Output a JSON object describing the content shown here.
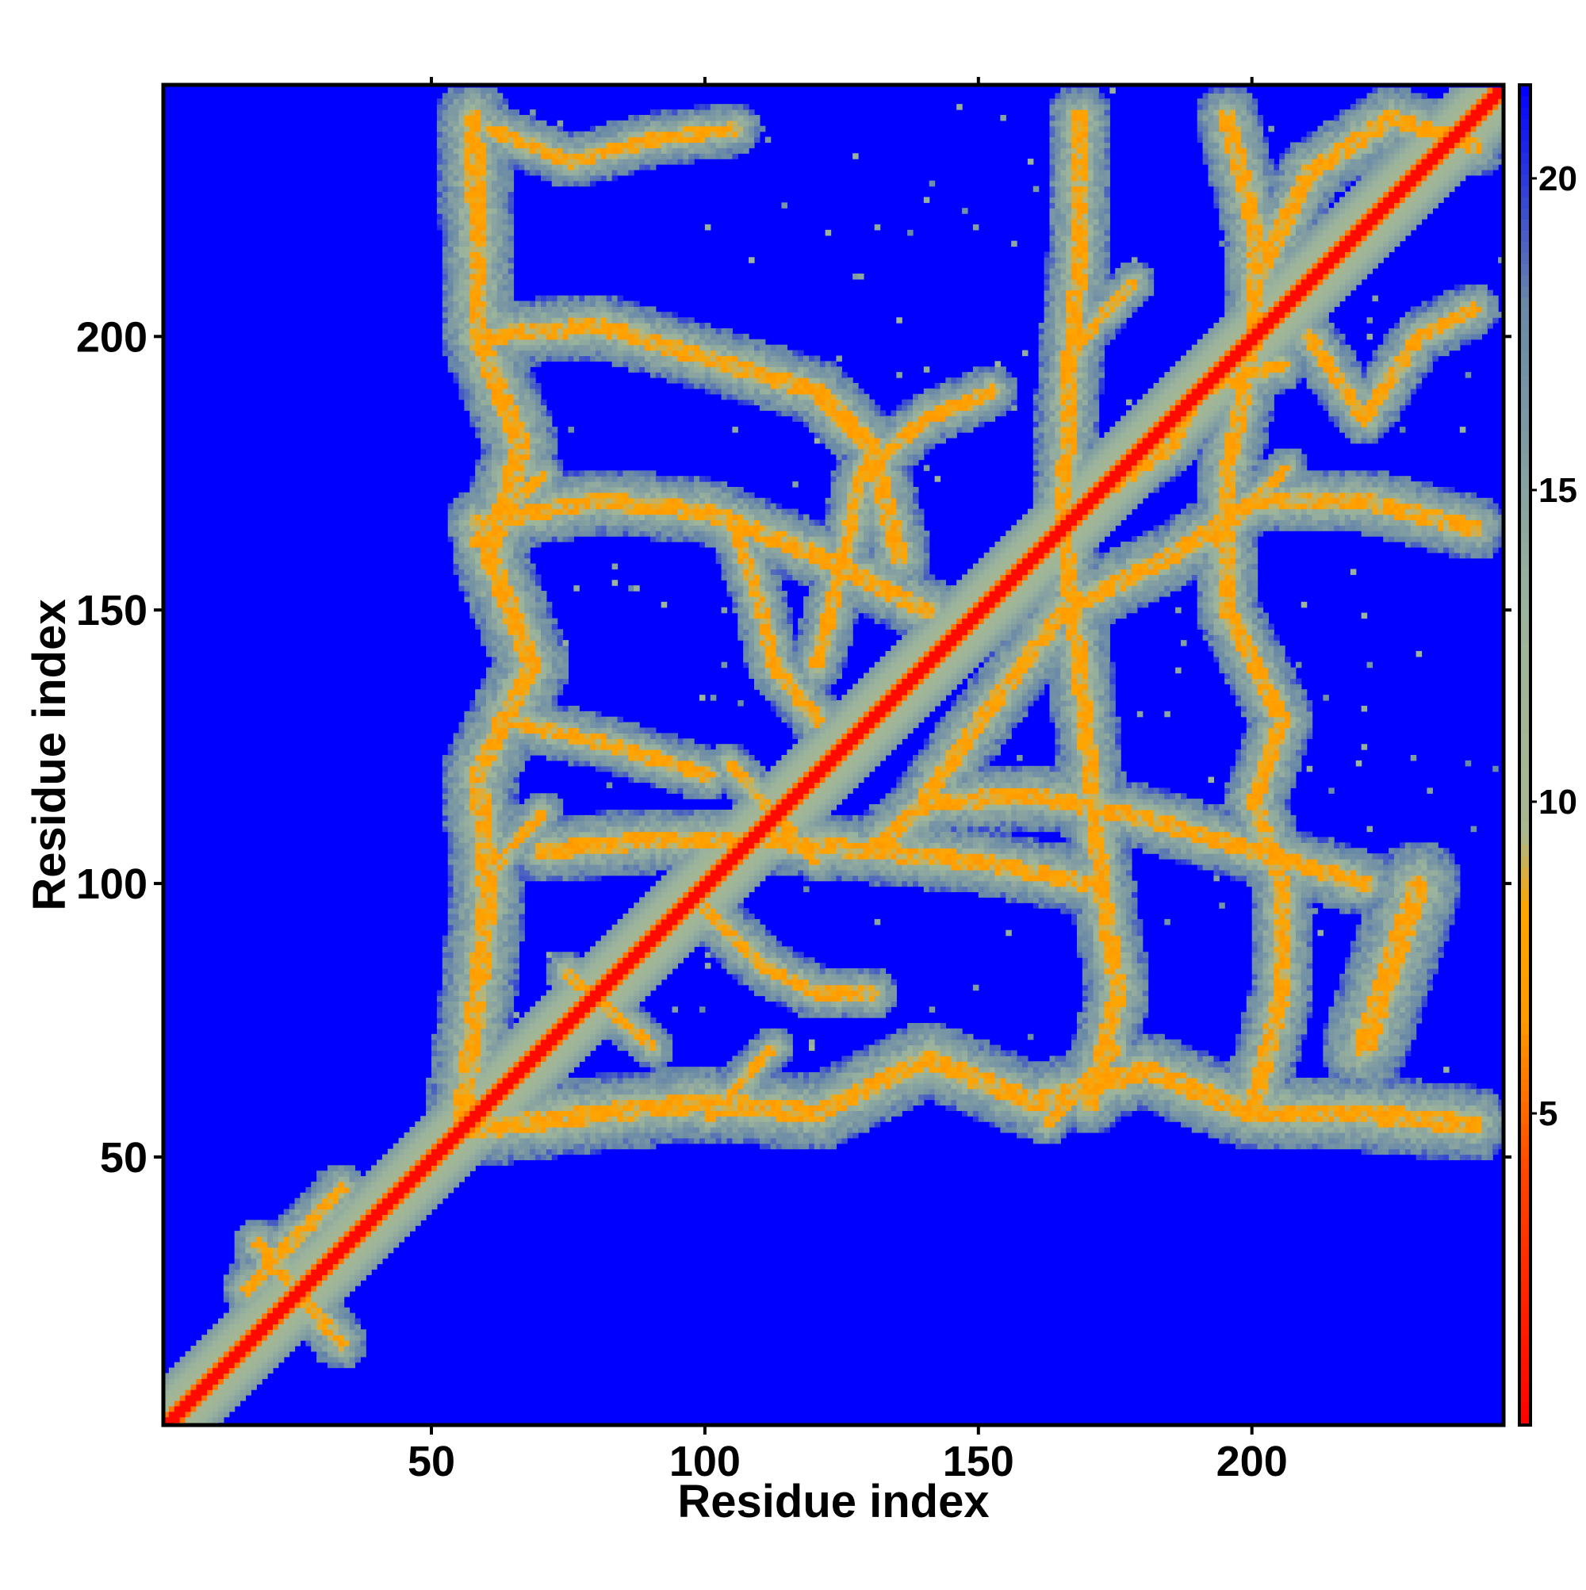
{
  "chart_data": {
    "type": "heatmap",
    "title": "",
    "xlabel": "Residue index",
    "ylabel": "Residue index",
    "n_residues": 245,
    "xlim": [
      1,
      246
    ],
    "ylim": [
      1,
      246
    ],
    "x_ticks": [
      50,
      100,
      150,
      200
    ],
    "y_ticks": [
      50,
      100,
      150,
      200
    ],
    "x_tick_labels": [
      "50",
      "100",
      "150",
      "200"
    ],
    "y_tick_labels": [
      "50",
      "100",
      "150",
      "200"
    ],
    "colorbar": {
      "range": [
        0,
        21.5
      ],
      "ticks": [
        5,
        10,
        15,
        20
      ],
      "tick_labels": [
        "5",
        "10",
        "15",
        "20"
      ],
      "color_stops": [
        {
          "value": 0,
          "color": "#ff0000"
        },
        {
          "value": 4,
          "color": "#ff4500"
        },
        {
          "value": 6.5,
          "color": "#ff9a00"
        },
        {
          "value": 8.3,
          "color": "#ffa500"
        },
        {
          "value": 9.5,
          "color": "#a8b890"
        },
        {
          "value": 13,
          "color": "#9cb49c"
        },
        {
          "value": 18,
          "color": "#6888a8"
        },
        {
          "value": 21.5,
          "color": "#0000ff"
        }
      ]
    },
    "value_meaning": "pairwise distance (values above cutoff shown blue)",
    "colors": {
      "background": "#0000ff",
      "diagonal": "#ff0000",
      "near": "#ff9a00",
      "mid": "#a8b890",
      "far": "#6888a8"
    },
    "contact_bands": [
      {
        "type": "diagonal",
        "from": 1,
        "to": 245,
        "width": 7
      },
      {
        "type": "segment",
        "from": [
          16,
          26
        ],
        "to": [
          33,
          44
        ],
        "width": 5
      },
      {
        "type": "segment",
        "from": [
          33,
          16
        ],
        "to": [
          18,
          34
        ],
        "width": 5
      },
      {
        "type": "segment",
        "from": [
          100,
          57
        ],
        "to": [
          112,
          70
        ],
        "width": 4
      },
      {
        "type": "segment",
        "from": [
          162,
          56
        ],
        "to": [
          175,
          70
        ],
        "width": 4
      },
      {
        "type": "segment",
        "from": [
          58,
          100
        ],
        "to": [
          70,
          113
        ],
        "width": 4
      },
      {
        "type": "segment",
        "from": [
          57,
          162
        ],
        "to": [
          70,
          175
        ],
        "width": 4
      },
      {
        "type": "segment",
        "from": [
          165,
          196
        ],
        "to": [
          178,
          210
        ],
        "width": 4
      },
      {
        "type": "segment",
        "from": [
          192,
          162
        ],
        "to": [
          206,
          176
        ],
        "width": 4
      },
      {
        "type": "segment",
        "from": [
          104,
          122
        ],
        "to": [
          120,
          104
        ],
        "width": 4
      },
      {
        "type": "segment",
        "from": [
          74,
          84
        ],
        "to": [
          90,
          70
        ],
        "width": 4
      },
      {
        "type": "polyline",
        "points": [
          [
            56,
            55
          ],
          [
            80,
            58
          ],
          [
            100,
            60
          ],
          [
            120,
            58
          ],
          [
            140,
            68
          ],
          [
            160,
            60
          ],
          [
            180,
            66
          ],
          [
            200,
            58
          ],
          [
            220,
            58
          ],
          [
            240,
            56
          ]
        ],
        "width": 7
      },
      {
        "type": "polyline",
        "points": [
          [
            55,
            56
          ],
          [
            58,
            80
          ],
          [
            60,
            100
          ],
          [
            58,
            120
          ],
          [
            68,
            140
          ],
          [
            60,
            160
          ],
          [
            66,
            180
          ],
          [
            58,
            200
          ],
          [
            58,
            220
          ],
          [
            57,
            240
          ]
        ],
        "width": 7
      },
      {
        "type": "polyline",
        "points": [
          [
            58,
            200
          ],
          [
            80,
            202
          ],
          [
            100,
            196
          ],
          [
            120,
            190
          ],
          [
            130,
            180
          ],
          [
            135,
            160
          ]
        ],
        "width": 6
      },
      {
        "type": "polyline",
        "points": [
          [
            58,
            166
          ],
          [
            80,
            170
          ],
          [
            100,
            168
          ],
          [
            120,
            160
          ],
          [
            140,
            150
          ]
        ],
        "width": 6
      },
      {
        "type": "polyline",
        "points": [
          [
            70,
            106
          ],
          [
            90,
            108
          ],
          [
            110,
            108
          ],
          [
            130,
            106
          ],
          [
            150,
            104
          ],
          [
            170,
            100
          ]
        ],
        "width": 6
      },
      {
        "type": "polyline",
        "points": [
          [
            62,
            130
          ],
          [
            80,
            126
          ],
          [
            100,
            120
          ]
        ],
        "width": 5
      },
      {
        "type": "polyline",
        "points": [
          [
            120,
            140
          ],
          [
            125,
            160
          ],
          [
            128,
            175
          ],
          [
            140,
            185
          ],
          [
            152,
            190
          ]
        ],
        "width": 5
      },
      {
        "type": "polyline",
        "points": [
          [
            130,
            106
          ],
          [
            140,
            115
          ],
          [
            160,
            116
          ],
          [
            180,
            112
          ],
          [
            200,
            106
          ],
          [
            220,
            100
          ]
        ],
        "width": 6
      },
      {
        "type": "polyline",
        "points": [
          [
            140,
            116
          ],
          [
            150,
            130
          ],
          [
            165,
            150
          ],
          [
            185,
            160
          ],
          [
            200,
            170
          ],
          [
            220,
            170
          ],
          [
            240,
            165
          ]
        ],
        "width": 6
      },
      {
        "type": "polyline",
        "points": [
          [
            105,
            165
          ],
          [
            110,
            150
          ],
          [
            112,
            140
          ],
          [
            120,
            130
          ]
        ],
        "width": 5
      },
      {
        "type": "polyline",
        "points": [
          [
            100,
            95
          ],
          [
            110,
            85
          ],
          [
            120,
            80
          ],
          [
            130,
            80
          ]
        ],
        "width": 5
      },
      {
        "type": "polyline",
        "points": [
          [
            170,
            60
          ],
          [
            175,
            80
          ],
          [
            172,
            100
          ],
          [
            170,
            120
          ],
          [
            168,
            140
          ],
          [
            165,
            165
          ],
          [
            166,
            190
          ],
          [
            168,
            215
          ],
          [
            168,
            240
          ]
        ],
        "width": 6
      },
      {
        "type": "polyline",
        "points": [
          [
            200,
            60
          ],
          [
            205,
            80
          ],
          [
            205,
            100
          ],
          [
            200,
            115
          ],
          [
            205,
            130
          ],
          [
            195,
            150
          ],
          [
            195,
            175
          ],
          [
            200,
            200
          ],
          [
            200,
            220
          ],
          [
            195,
            240
          ]
        ],
        "width": 6
      },
      {
        "type": "polyline",
        "points": [
          [
            220,
            70
          ],
          [
            225,
            85
          ],
          [
            230,
            100
          ]
        ],
        "width": 8
      },
      {
        "type": "polyline",
        "points": [
          [
            200,
            210
          ],
          [
            210,
            230
          ],
          [
            225,
            240
          ],
          [
            240,
            235
          ]
        ],
        "width": 6
      },
      {
        "type": "polyline",
        "points": [
          [
            210,
            200
          ],
          [
            220,
            185
          ],
          [
            230,
            200
          ],
          [
            240,
            205
          ]
        ],
        "width": 5
      },
      {
        "type": "polyline",
        "points": [
          [
            60,
            238
          ],
          [
            75,
            232
          ],
          [
            90,
            236
          ],
          [
            105,
            238
          ]
        ],
        "width": 5
      },
      {
        "type": "polyline",
        "points": [
          [
            170,
            170
          ],
          [
            185,
            180
          ],
          [
            190,
            190
          ],
          [
            205,
            195
          ]
        ],
        "width": 5
      }
    ]
  }
}
